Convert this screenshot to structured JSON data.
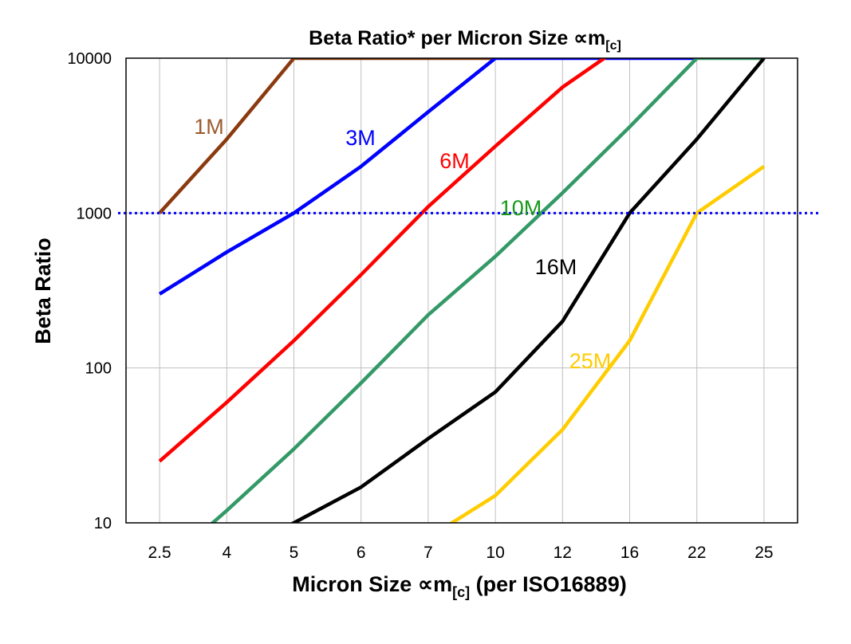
{
  "chart_data": {
    "type": "line",
    "title": {
      "main": "Beta Ratio* per Micron Size ∝m",
      "sub": "[c]"
    },
    "xlabel": {
      "main": "Micron Size ∝m",
      "sub": "[c]",
      "tail": " (per ISO16889)"
    },
    "ylabel": "Beta Ratio",
    "yscale": "log",
    "ylim": [
      10,
      10000
    ],
    "yticks": [
      "10",
      "100",
      "1000",
      "10000"
    ],
    "categories": [
      "2.5",
      "4",
      "5",
      "6",
      "7",
      "10",
      "12",
      "16",
      "22",
      "25"
    ],
    "grid": true,
    "reference_line": {
      "y": 1000,
      "color": "#0000FF",
      "style": "dotted"
    },
    "series": [
      {
        "name": "1M",
        "color": "#8B3A0F",
        "label_color": "#9C5B2E",
        "values": [
          1000,
          3000,
          10000,
          10000,
          10000,
          10000,
          null,
          null,
          null,
          null
        ]
      },
      {
        "name": "3M",
        "color": "#0000FF",
        "label_color": "#0000FF",
        "values": [
          300,
          560,
          1000,
          2000,
          4500,
          10000,
          10000,
          10000,
          10000,
          null
        ]
      },
      {
        "name": "6M",
        "color": "#FF0000",
        "label_color": "#FF0000",
        "values": [
          25,
          60,
          150,
          400,
          1100,
          2700,
          6500,
          13000,
          null,
          null
        ]
      },
      {
        "name": "10M",
        "color": "#339966",
        "label_color": "#1A991A",
        "values": [
          5,
          12,
          30,
          80,
          220,
          525,
          1350,
          3600,
          10000,
          10000
        ]
      },
      {
        "name": "16M",
        "color": "#000000",
        "label_color": "#000000",
        "values": [
          null,
          6,
          10,
          17,
          35,
          70,
          200,
          1000,
          3000,
          10000
        ]
      },
      {
        "name": "25M",
        "color": "#FFCC00",
        "label_color": "#FFCC00",
        "values": [
          null,
          null,
          null,
          null,
          8,
          15,
          40,
          150,
          1000,
          2000
        ]
      }
    ]
  }
}
